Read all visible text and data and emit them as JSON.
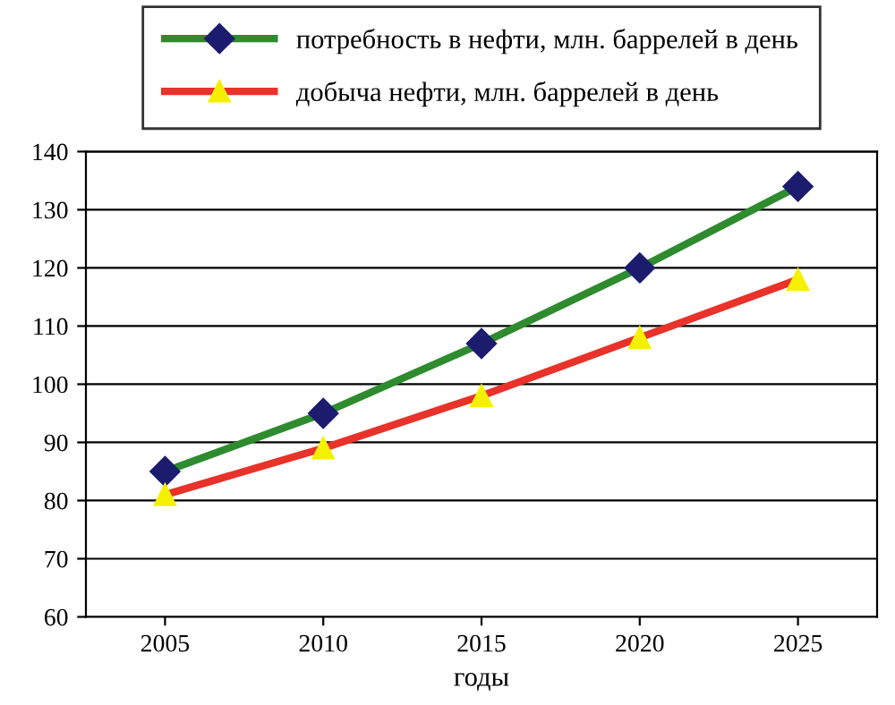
{
  "chart_data": {
    "type": "line",
    "xlabel": "годы",
    "categories": [
      "2005",
      "2010",
      "2015",
      "2020",
      "2025"
    ],
    "series": [
      {
        "name": "потребность в нефти, млн. баррелей в день",
        "color": "#2e8b2e",
        "marker": "diamond",
        "values": [
          85,
          95,
          107,
          120,
          134
        ]
      },
      {
        "name": "добыча нефти, млн. баррелей в день",
        "color": "#e8322a",
        "marker": "triangle",
        "values": [
          81,
          89,
          98,
          108,
          118
        ]
      }
    ],
    "ylim": [
      60,
      140
    ],
    "yticks": [
      60,
      70,
      80,
      90,
      100,
      110,
      120,
      130,
      140
    ],
    "grid": "y",
    "legend": "top",
    "line_style": "solid"
  }
}
